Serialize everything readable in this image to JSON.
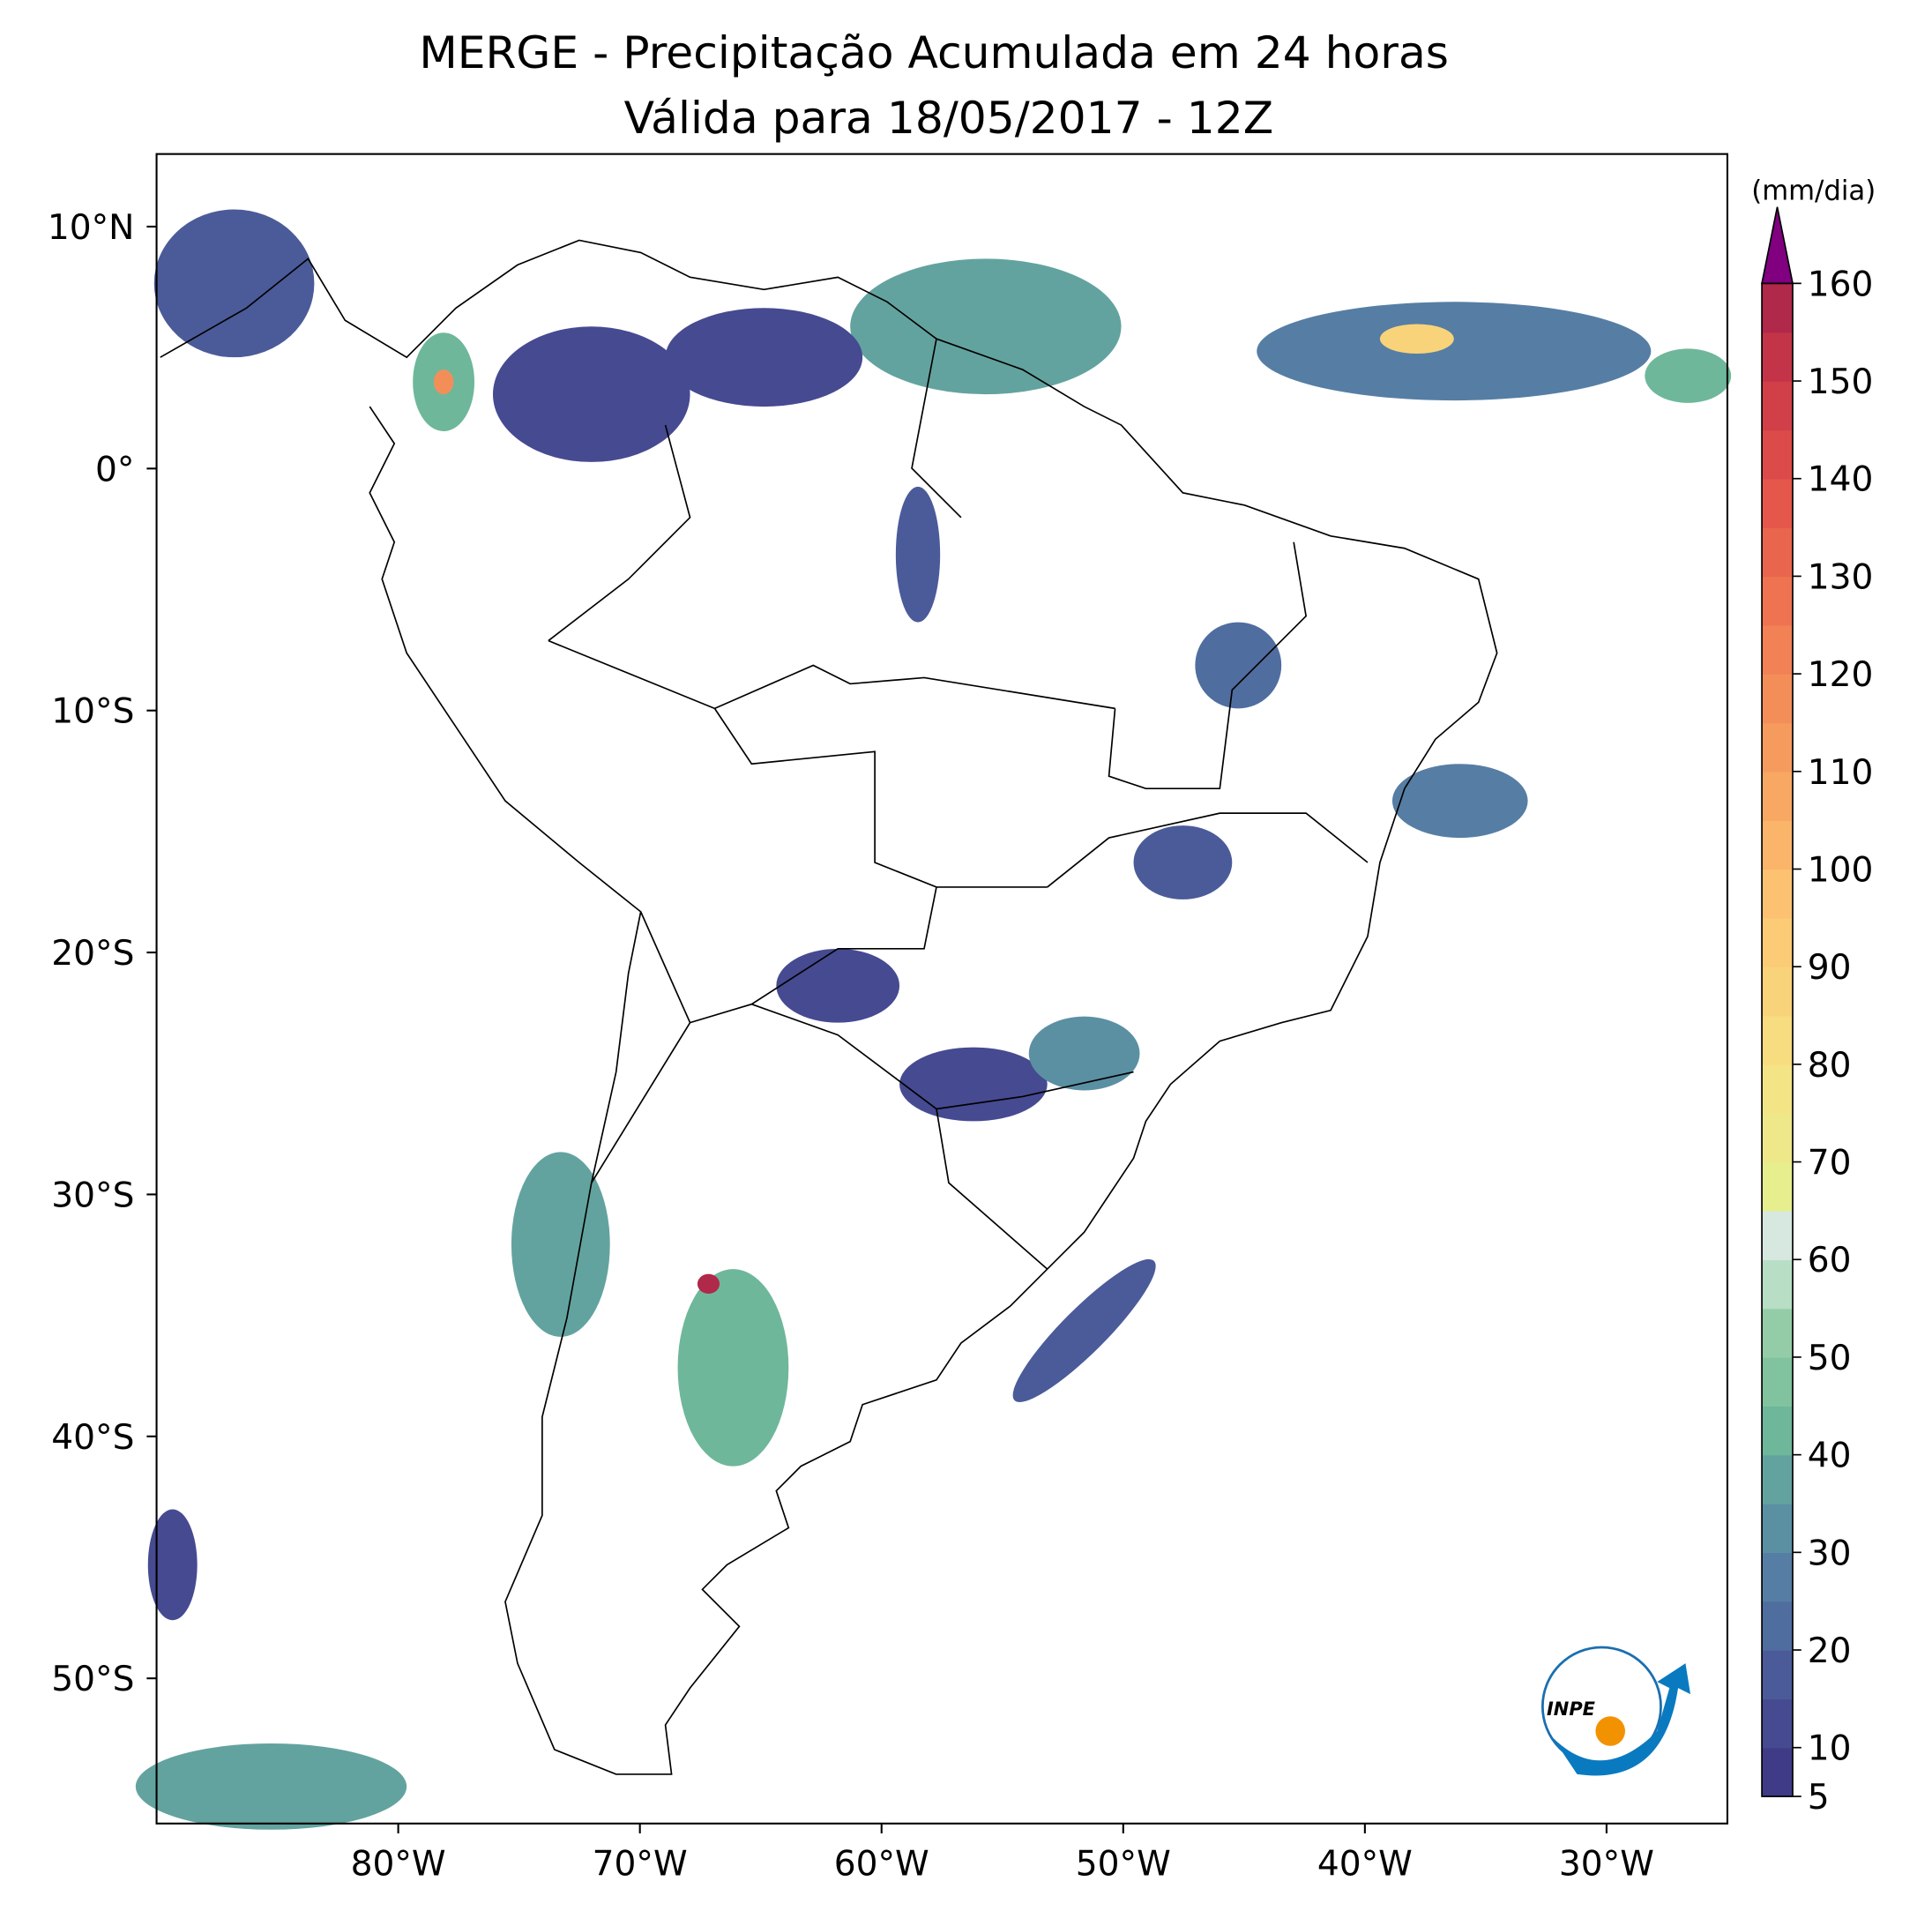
{
  "header": {
    "title": "MERGE - Precipitação Acumulada em 24 horas",
    "subtitle": "Válida para 18/05/2017 - 12Z"
  },
  "map": {
    "xlim": [
      -90,
      -25
    ],
    "ylim": [
      -56,
      13
    ],
    "xticks": [
      {
        "value": -80,
        "label": "80°W"
      },
      {
        "value": -70,
        "label": "70°W"
      },
      {
        "value": -60,
        "label": "60°W"
      },
      {
        "value": -50,
        "label": "50°W"
      },
      {
        "value": -40,
        "label": "40°W"
      },
      {
        "value": -30,
        "label": "30°W"
      }
    ],
    "yticks": [
      {
        "value": 10,
        "label": "10°N"
      },
      {
        "value": 0,
        "label": "0°"
      },
      {
        "value": -10,
        "label": "10°S"
      },
      {
        "value": -20,
        "label": "20°S"
      },
      {
        "value": -30,
        "label": "30°S"
      },
      {
        "value": -40,
        "label": "40°S"
      },
      {
        "value": -50,
        "label": "50°S"
      }
    ]
  },
  "colorbar": {
    "label": "(mm/dia)",
    "lim": [
      5,
      160
    ],
    "ticks": [
      5,
      10,
      20,
      30,
      40,
      50,
      60,
      70,
      80,
      90,
      100,
      110,
      120,
      130,
      140,
      150,
      160
    ],
    "colors": [
      "#3f3b87",
      "#464a91",
      "#4b5b99",
      "#506da0",
      "#567ea4",
      "#5b90a3",
      "#63a39f",
      "#6fb79a",
      "#80c39e",
      "#95cca8",
      "#b8dec6",
      "#d6e8e0",
      "#e6ee8e",
      "#eee88a",
      "#f3e485",
      "#f7dc80",
      "#f9d37a",
      "#fbcb76",
      "#fcc271",
      "#fab56a",
      "#f8a863",
      "#f69b5e",
      "#f48e59",
      "#f28155",
      "#ef7351",
      "#ea654d",
      "#e4574a",
      "#dc4a49",
      "#d13f49",
      "#c43449",
      "#b0284a"
    ],
    "extend_color": "#800080"
  },
  "logo": {
    "text": "INPE"
  }
}
